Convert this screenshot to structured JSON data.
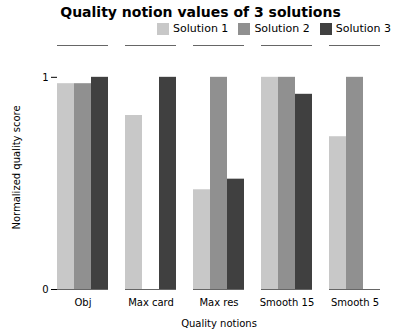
{
  "chart_data": {
    "type": "bar",
    "title": "Quality notion values of 3 solutions",
    "xlabel": "Quality notions",
    "ylabel": "Normalized quality score",
    "categories": [
      "Obj",
      "Max card",
      "Max res",
      "Smooth 15",
      "Smooth 5"
    ],
    "series": [
      {
        "name": "Solution 1",
        "color": "#c8c8c8",
        "values": [
          0.97,
          0.82,
          0.47,
          1.0,
          0.72
        ]
      },
      {
        "name": "Solution 2",
        "color": "#909090",
        "values": [
          0.97,
          0.0,
          1.0,
          1.0,
          1.0
        ]
      },
      {
        "name": "Solution 3",
        "color": "#404040",
        "values": [
          1.0,
          1.0,
          0.52,
          0.92,
          0.0
        ]
      }
    ],
    "ylim": [
      0,
      1.15
    ],
    "yticks": [
      0,
      1
    ],
    "grid": false,
    "legend": "upper right"
  }
}
